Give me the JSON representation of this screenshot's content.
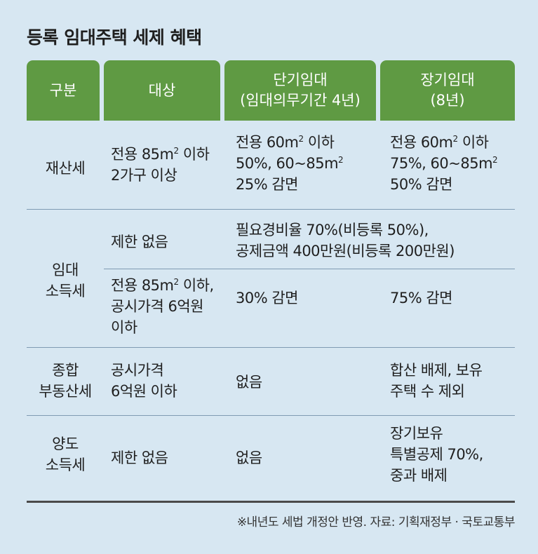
{
  "title": "등록 임대주택 세제 혜택",
  "headers": {
    "col1": "구분",
    "col2": "대상",
    "col3_line1": "단기임대",
    "col3_line2": "(임대의무기간 4년)",
    "col4_line1": "장기임대",
    "col4_line2": "(8년)"
  },
  "rows": {
    "property_tax": {
      "category": "재산세",
      "target_line1": "전용 85㎡ 이하",
      "target_line2": "2가구 이상",
      "short_line1": "전용 60㎡ 이하",
      "short_line2": "50%, 60~85㎡",
      "short_line3": "25% 감면",
      "long_line1": "전용 60㎡ 이하",
      "long_line2": "75%, 60~85㎡",
      "long_line3": "50% 감면"
    },
    "rental_income_tax": {
      "category_line1": "임대",
      "category_line2": "소득세",
      "a_target": "제한 없음",
      "a_benefit_line1": "필요경비율 70%(비등록 50%),",
      "a_benefit_line2": "공제금액 400만원(비등록 200만원)",
      "b_target_line1": "전용 85㎡ 이하,",
      "b_target_line2": "공시가격 6억원",
      "b_target_line3": "이하",
      "b_short": "30% 감면",
      "b_long": "75% 감면"
    },
    "comprehensive_tax": {
      "category_line1": "종합",
      "category_line2": "부동산세",
      "target_line1": "공시가격",
      "target_line2": "6억원 이하",
      "short": "없음",
      "long_line1": "합산 배제, 보유",
      "long_line2": "주택 수 제외"
    },
    "transfer_tax": {
      "category_line1": "양도",
      "category_line2": "소득세",
      "target": "제한 없음",
      "short": "없음",
      "long_line1": "장기보유",
      "long_line2": "특별공제 70%,",
      "long_line3": "중과 배제"
    }
  },
  "footnote": "※내년도 세법 개정안 반영. 자료: 기획재정부 · 국토교통부",
  "colors": {
    "header_bg": "#5f9a43",
    "page_bg": "#d7e7f2"
  }
}
